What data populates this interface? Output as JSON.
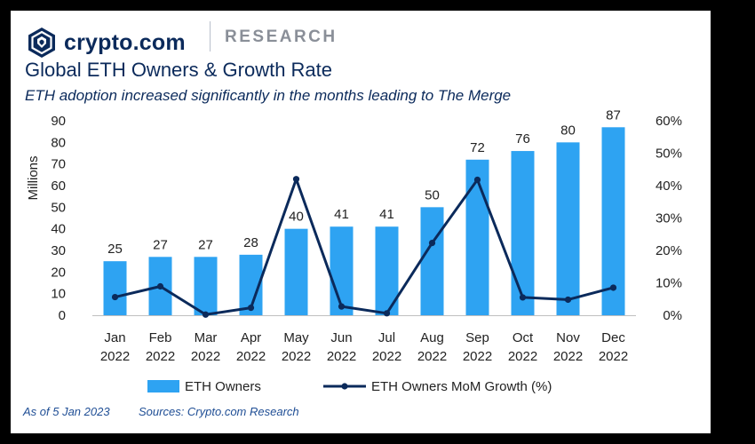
{
  "brand": {
    "name": "crypto.com",
    "section": "RESEARCH",
    "logo_icon": "shield-lion-logo-icon",
    "color": "#0b2a5b"
  },
  "title": "Global ETH Owners & Growth Rate",
  "subtitle": "ETH adoption increased significantly in the months leading to The Merge",
  "footer": {
    "as_of": "As of 5 Jan 2023",
    "sources": "Sources: Crypto.com Research"
  },
  "chart_data": {
    "type": "bar",
    "title": "Global ETH Owners & Growth Rate",
    "categories": [
      [
        "Jan",
        "2022"
      ],
      [
        "Feb",
        "2022"
      ],
      [
        "Mar",
        "2022"
      ],
      [
        "Apr",
        "2022"
      ],
      [
        "May",
        "2022"
      ],
      [
        "Jun",
        "2022"
      ],
      [
        "Jul",
        "2022"
      ],
      [
        "Aug",
        "2022"
      ],
      [
        "Sep",
        "2022"
      ],
      [
        "Oct",
        "2022"
      ],
      [
        "Nov",
        "2022"
      ],
      [
        "Dec",
        "2022"
      ]
    ],
    "ylabel": "Millions",
    "ylim": [
      0,
      90
    ],
    "yticks": [
      0,
      10,
      20,
      30,
      40,
      50,
      60,
      70,
      80,
      90
    ],
    "y2lim": [
      0,
      60
    ],
    "y2ticks": [
      "0%",
      "10%",
      "20%",
      "30%",
      "40%",
      "50%",
      "60%"
    ],
    "legend": "bottom",
    "grid": false,
    "series": [
      {
        "name": "ETH Owners",
        "type": "bar",
        "axis": "left",
        "color": "#2ea3f2",
        "values": [
          25,
          27,
          27,
          28,
          40,
          41,
          41,
          50,
          72,
          76,
          80,
          87
        ],
        "labels": [
          "25",
          "27",
          "27",
          "28",
          "40",
          "41",
          "41",
          "50",
          "72",
          "76",
          "80",
          "87"
        ]
      },
      {
        "name": "ETH Owners MoM Growth (%)",
        "type": "line",
        "axis": "right",
        "color": "#0b2a5b",
        "values": [
          5.6,
          8.9,
          0.2,
          2.3,
          42.0,
          2.7,
          0.6,
          22.3,
          41.8,
          5.5,
          4.8,
          8.5
        ]
      }
    ]
  }
}
